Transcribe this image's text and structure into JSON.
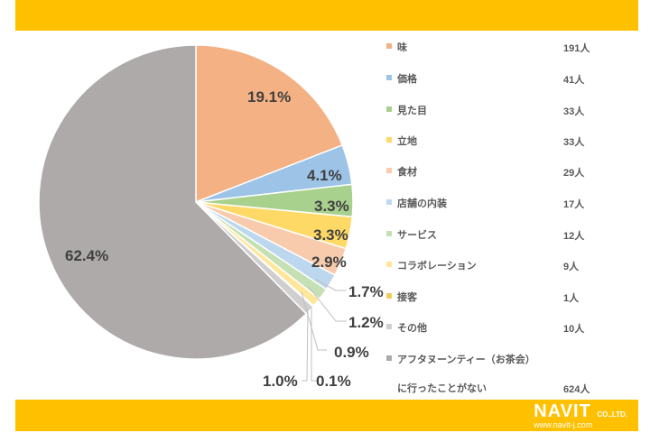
{
  "header": {
    "band_color": "#FFC000"
  },
  "footer": {
    "logo_brand": "NAVIT",
    "logo_suffix": "CO.,LTD.",
    "logo_url": "www.navit-j.com"
  },
  "chart_data": {
    "type": "pie",
    "title": "",
    "start_angle": "12 o'clock, clockwise",
    "unit": "人",
    "categories": [
      "味",
      "価格",
      "見た目",
      "立地",
      "食材",
      "店舗の内装",
      "サービス",
      "コラボレーション",
      "接客",
      "その他",
      "アフタヌーンティー（お茶会）に行ったことがない"
    ],
    "values": [
      191,
      41,
      33,
      33,
      29,
      17,
      12,
      9,
      1,
      10,
      624
    ],
    "percent_labels": [
      "19.1%",
      "4.1%",
      "3.3%",
      "3.3%",
      "2.9%",
      "1.7%",
      "1.2%",
      "0.9%",
      "0.1%",
      "1.0%",
      "62.4%"
    ],
    "colors": [
      "#F4B183",
      "#9DC3E6",
      "#A9D18E",
      "#FFD966",
      "#F8CBAD",
      "#BDD7EE",
      "#C5E0B4",
      "#FFE699",
      "#F2CC5C",
      "#D0CECE",
      "#AEAAAA"
    ],
    "legend_position": "right"
  },
  "legend": {
    "items": [
      {
        "label": "味",
        "value": "191人"
      },
      {
        "label": "価格",
        "value": "41人"
      },
      {
        "label": "見た目",
        "value": "33人"
      },
      {
        "label": "立地",
        "value": "33人"
      },
      {
        "label": "食材",
        "value": "29人"
      },
      {
        "label": "店舗の内装",
        "value": "17人"
      },
      {
        "label": "サービス",
        "value": "12人"
      },
      {
        "label": "コラボレーション",
        "value": "9人"
      },
      {
        "label": "接客",
        "value": "1人"
      },
      {
        "label": "その他",
        "value": "10人"
      },
      {
        "label": "アフタヌーンティー（お茶会）",
        "label2": "に行ったことがない",
        "value": "624人"
      }
    ]
  },
  "labels": {
    "l0": "19.1%",
    "l1": "4.1%",
    "l2": "3.3%",
    "l3": "3.3%",
    "l4": "2.9%",
    "l5": "1.7%",
    "l6": "1.2%",
    "l7": "0.9%",
    "l8": "0.1%",
    "l9": "1.0%",
    "l10": "62.4%"
  }
}
